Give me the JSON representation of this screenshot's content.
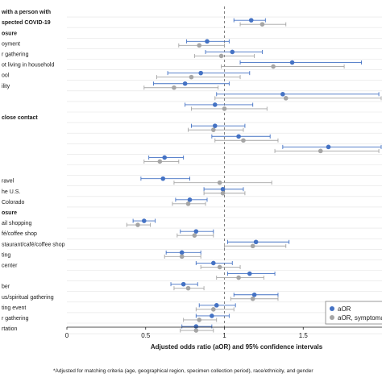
{
  "chart_data": {
    "type": "forest",
    "xlabel": "Adjusted odds ratio (aOR) and 95% confidence intervals",
    "xlim": [
      0,
      2
    ],
    "x_ticks": [
      0,
      0.5,
      1,
      1.5
    ],
    "reference_line": 1,
    "grid": "horizontal",
    "legend": {
      "position": "bottom-right",
      "items": [
        {
          "name": "aOR",
          "color": "#4472C4"
        },
        {
          "name": "aOR, symptomatic",
          "color": "#A5A5A5"
        }
      ]
    },
    "footnote": "*Adjusted for matching criteria (age, geographical region, specimen collection period), race/ethnicity, and gender",
    "series": [
      {
        "name": "aOR",
        "color": "#4472C4"
      },
      {
        "name": "aOR, symptomatic",
        "color": "#A5A5A5"
      }
    ],
    "rows": [
      {
        "label": "with a person with",
        "header": true
      },
      {
        "label": "spected COVID-19",
        "header": true,
        "values": [
          {
            "est": 1.17,
            "lo": 1.06,
            "hi": 1.26
          },
          {
            "est": 1.24,
            "lo": 1.1,
            "hi": 1.39
          }
        ]
      },
      {
        "label": "osure",
        "header": true
      },
      {
        "label": "oyment",
        "values": [
          {
            "est": 0.89,
            "lo": 0.76,
            "hi": 1.03
          },
          {
            "est": 0.84,
            "lo": 0.71,
            "hi": 1.0
          }
        ]
      },
      {
        "label": "r gathering",
        "values": [
          {
            "est": 1.05,
            "lo": 0.88,
            "hi": 1.24
          },
          {
            "est": 0.98,
            "lo": 0.81,
            "hi": 1.19
          }
        ]
      },
      {
        "label": "ot living in household",
        "values": [
          {
            "est": 1.43,
            "lo": 1.1,
            "hi": 1.87
          },
          {
            "est": 1.31,
            "lo": 0.98,
            "hi": 1.76
          }
        ]
      },
      {
        "label": "ool",
        "values": [
          {
            "est": 0.85,
            "lo": 0.64,
            "hi": 1.16
          },
          {
            "est": 0.79,
            "lo": 0.57,
            "hi": 1.1
          }
        ]
      },
      {
        "label": "ility",
        "values": [
          {
            "est": 0.75,
            "lo": 0.55,
            "hi": 1.03
          },
          {
            "est": 0.68,
            "lo": 0.49,
            "hi": 0.96
          }
        ]
      },
      {
        "label": "",
        "values": [
          {
            "est": 1.37,
            "lo": 0.95,
            "hi": 1.98
          },
          {
            "est": 1.39,
            "lo": 0.94,
            "hi": 2.05
          }
        ]
      },
      {
        "label": "",
        "values": [
          {
            "est": 0.94,
            "lo": 0.75,
            "hi": 1.18
          },
          {
            "est": 1.0,
            "lo": 0.79,
            "hi": 1.27
          }
        ]
      },
      {
        "label": "close contact",
        "header": true
      },
      {
        "label": "",
        "values": [
          {
            "est": 0.94,
            "lo": 0.79,
            "hi": 1.13
          },
          {
            "est": 0.93,
            "lo": 0.77,
            "hi": 1.12
          }
        ]
      },
      {
        "label": "",
        "values": [
          {
            "est": 1.09,
            "lo": 0.92,
            "hi": 1.29
          },
          {
            "est": 1.12,
            "lo": 0.94,
            "hi": 1.34
          }
        ]
      },
      {
        "label": "",
        "values": [
          {
            "est": 1.66,
            "lo": 1.37,
            "hi": 2.02
          },
          {
            "est": 1.61,
            "lo": 1.32,
            "hi": 1.98
          }
        ]
      },
      {
        "label": "",
        "values": [
          {
            "est": 0.62,
            "lo": 0.52,
            "hi": 0.74
          },
          {
            "est": 0.59,
            "lo": 0.49,
            "hi": 0.71
          }
        ]
      },
      {
        "label": ""
      },
      {
        "label": "ravel",
        "values": [
          {
            "est": 0.61,
            "lo": 0.47,
            "hi": 0.78
          },
          {
            "est": 0.97,
            "lo": 0.68,
            "hi": 1.3
          }
        ]
      },
      {
        "label": "he U.S.",
        "values": [
          {
            "est": 0.99,
            "lo": 0.87,
            "hi": 1.12
          },
          {
            "est": 0.99,
            "lo": 0.87,
            "hi": 1.13
          }
        ]
      },
      {
        "label": "Colorado",
        "values": [
          {
            "est": 0.78,
            "lo": 0.69,
            "hi": 0.89
          },
          {
            "est": 0.77,
            "lo": 0.67,
            "hi": 0.88
          }
        ]
      },
      {
        "label": "osure",
        "header": true
      },
      {
        "label": "ail shopping",
        "values": [
          {
            "est": 0.49,
            "lo": 0.42,
            "hi": 0.56
          },
          {
            "est": 0.45,
            "lo": 0.38,
            "hi": 0.53
          }
        ]
      },
      {
        "label": "fé/coffee shop",
        "values": [
          {
            "est": 0.82,
            "lo": 0.72,
            "hi": 0.93
          },
          {
            "est": 0.81,
            "lo": 0.7,
            "hi": 0.93
          }
        ]
      },
      {
        "label": "staurant/café/coffee shop",
        "values": [
          {
            "est": 1.2,
            "lo": 1.02,
            "hi": 1.41
          },
          {
            "est": 1.18,
            "lo": 1.0,
            "hi": 1.39
          }
        ]
      },
      {
        "label": "ting",
        "values": [
          {
            "est": 0.73,
            "lo": 0.63,
            "hi": 0.85
          },
          {
            "est": 0.73,
            "lo": 0.62,
            "hi": 0.85
          }
        ]
      },
      {
        "label": "center",
        "values": [
          {
            "est": 0.93,
            "lo": 0.82,
            "hi": 1.05
          },
          {
            "est": 0.97,
            "lo": 0.85,
            "hi": 1.1
          }
        ]
      },
      {
        "label": "",
        "values": [
          {
            "est": 1.16,
            "lo": 1.02,
            "hi": 1.32
          },
          {
            "est": 1.09,
            "lo": 0.95,
            "hi": 1.25
          }
        ]
      },
      {
        "label": "ber",
        "values": [
          {
            "est": 0.74,
            "lo": 0.66,
            "hi": 0.83
          },
          {
            "est": 0.77,
            "lo": 0.68,
            "hi": 0.87
          }
        ]
      },
      {
        "label": "us/spiritual gathering",
        "values": [
          {
            "est": 1.19,
            "lo": 1.06,
            "hi": 1.34
          },
          {
            "est": 1.18,
            "lo": 1.04,
            "hi": 1.34
          }
        ]
      },
      {
        "label": "ting event",
        "values": [
          {
            "est": 0.95,
            "lo": 0.84,
            "hi": 1.07
          },
          {
            "est": 0.93,
            "lo": 0.82,
            "hi": 1.06
          }
        ]
      },
      {
        "label": "r gathering",
        "values": [
          {
            "est": 0.92,
            "lo": 0.82,
            "hi": 1.03
          },
          {
            "est": 0.84,
            "lo": 0.74,
            "hi": 0.95
          }
        ]
      },
      {
        "label": "rtation",
        "values": [
          {
            "est": 0.82,
            "lo": 0.73,
            "hi": 0.92
          },
          {
            "est": 0.82,
            "lo": 0.72,
            "hi": 0.93
          }
        ]
      }
    ]
  }
}
